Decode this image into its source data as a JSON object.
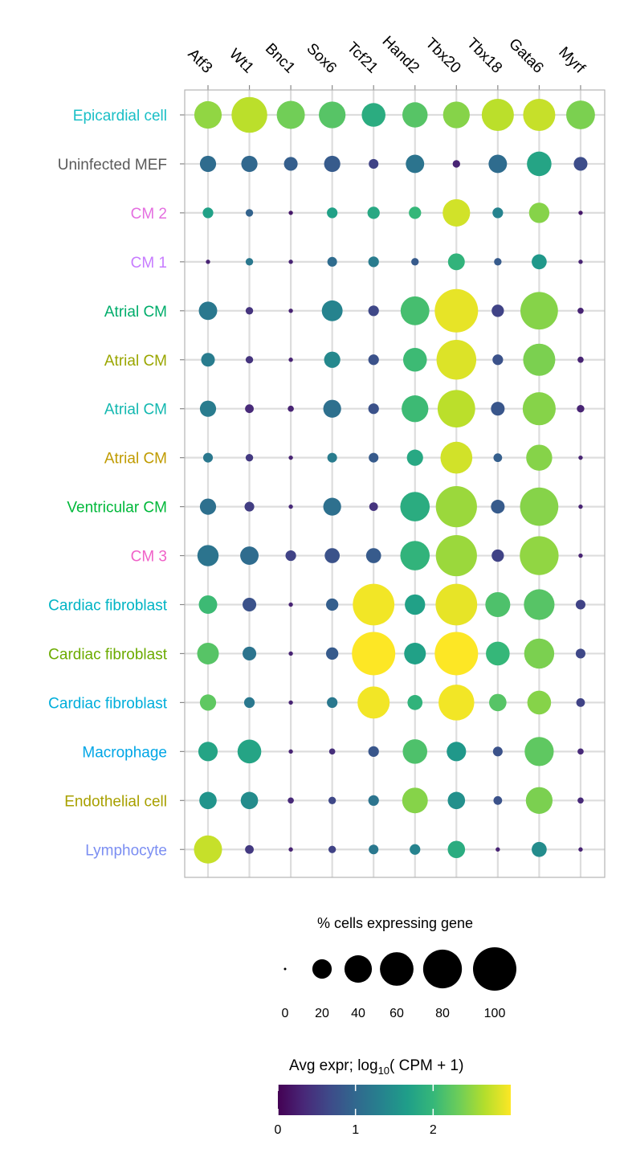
{
  "chart_data": {
    "type": "dotplot",
    "genes": [
      "Atf3",
      "Wt1",
      "Bnc1",
      "Sox6",
      "Tcf21",
      "Hand2",
      "Tbx20",
      "Tbx18",
      "Gata6",
      "Myrf"
    ],
    "cell_types": [
      {
        "name": "Epicardial cell",
        "color": "#1ABFC6"
      },
      {
        "name": "Uninfected MEF",
        "color": "#5A5A5A"
      },
      {
        "name": "CM 2",
        "color": "#E46FE0"
      },
      {
        "name": "CM 1",
        "color": "#C77CFF"
      },
      {
        "name": "Atrial CM",
        "color": "#00AD6B"
      },
      {
        "name": "Atrial CM",
        "color": "#9AA600"
      },
      {
        "name": "Atrial CM",
        "color": "#13B8B0"
      },
      {
        "name": "Atrial CM",
        "color": "#C09B00"
      },
      {
        "name": "Ventricular CM",
        "color": "#00B83A"
      },
      {
        "name": "CM 3",
        "color": "#F062C8"
      },
      {
        "name": "Cardiac fibroblast",
        "color": "#00B4C4"
      },
      {
        "name": "Cardiac fibroblast",
        "color": "#6CAB00"
      },
      {
        "name": "Cardiac fibroblast",
        "color": "#00AEDB"
      },
      {
        "name": "Macrophage",
        "color": "#00A6E6"
      },
      {
        "name": "Endothelial cell",
        "color": "#A8A000"
      },
      {
        "name": "Lymphocyte",
        "color": "#7B8EF2"
      }
    ],
    "pct_expressing": [
      [
        40,
        68,
        42,
        38,
        30,
        34,
        38,
        55,
        55,
        44
      ],
      [
        14,
        14,
        10,
        14,
        5,
        18,
        3,
        18,
        32,
        10
      ],
      [
        6,
        3,
        1,
        6,
        8,
        8,
        40,
        6,
        22,
        1
      ],
      [
        1,
        3,
        1,
        5,
        6,
        3,
        15,
        3,
        12,
        1
      ],
      [
        18,
        3,
        1,
        23,
        6,
        44,
        100,
        8,
        75,
        2
      ],
      [
        10,
        3,
        1,
        14,
        6,
        30,
        84,
        6,
        55,
        2
      ],
      [
        14,
        4,
        2,
        17,
        6,
        38,
        75,
        10,
        58,
        3
      ],
      [
        5,
        3,
        1,
        5,
        5,
        14,
        54,
        4,
        36,
        1
      ],
      [
        14,
        5,
        1,
        17,
        4,
        46,
        90,
        10,
        78,
        1
      ],
      [
        24,
        18,
        6,
        12,
        12,
        46,
        90,
        8,
        80,
        1
      ],
      [
        18,
        10,
        1,
        8,
        92,
        22,
        92,
        33,
        50,
        5
      ],
      [
        25,
        10,
        1,
        8,
        100,
        25,
        100,
        30,
        48,
        5
      ],
      [
        14,
        6,
        1,
        6,
        55,
        12,
        68,
        16,
        30,
        4
      ],
      [
        20,
        30,
        1,
        2,
        6,
        32,
        20,
        5,
        45,
        2
      ],
      [
        16,
        16,
        2,
        3,
        6,
        35,
        16,
        4,
        38,
        2
      ],
      [
        42,
        4,
        1,
        3,
        5,
        6,
        16,
        1,
        12,
        1
      ]
    ],
    "avg_expr": [
      [
        2.5,
        2.7,
        2.35,
        2.2,
        1.85,
        2.2,
        2.45,
        2.7,
        2.75,
        2.4
      ],
      [
        1.05,
        1.0,
        0.9,
        0.85,
        0.6,
        1.15,
        0.3,
        1.05,
        1.75,
        0.7
      ],
      [
        1.7,
        0.95,
        0.2,
        1.7,
        1.8,
        2.0,
        2.8,
        1.35,
        2.45,
        0.2
      ],
      [
        0.3,
        1.2,
        0.3,
        1.05,
        1.25,
        0.85,
        1.95,
        0.85,
        1.6,
        0.3
      ],
      [
        1.2,
        0.45,
        0.3,
        1.35,
        0.65,
        2.1,
        2.9,
        0.6,
        2.45,
        0.3
      ],
      [
        1.25,
        0.45,
        0.3,
        1.4,
        0.75,
        2.05,
        2.85,
        0.75,
        2.4,
        0.3
      ],
      [
        1.25,
        0.35,
        0.3,
        1.1,
        0.75,
        2.05,
        2.7,
        0.8,
        2.45,
        0.3
      ],
      [
        1.2,
        0.5,
        0.3,
        1.25,
        0.85,
        1.8,
        2.8,
        0.9,
        2.45,
        0.3
      ],
      [
        1.1,
        0.55,
        0.35,
        1.1,
        0.45,
        1.85,
        2.55,
        0.85,
        2.45,
        0.3
      ],
      [
        1.15,
        1.05,
        0.6,
        0.75,
        0.85,
        1.95,
        2.55,
        0.6,
        2.5,
        0.3
      ],
      [
        2.05,
        0.75,
        0.3,
        0.9,
        2.95,
        1.7,
        2.9,
        2.15,
        2.2,
        0.6
      ],
      [
        2.2,
        1.15,
        0.3,
        0.85,
        3.0,
        1.7,
        3.0,
        2.0,
        2.4,
        0.65
      ],
      [
        2.25,
        1.2,
        0.3,
        1.2,
        2.95,
        1.95,
        2.95,
        2.2,
        2.45,
        0.6
      ],
      [
        1.75,
        1.75,
        0.3,
        0.4,
        0.8,
        2.15,
        1.6,
        0.75,
        2.25,
        0.35
      ],
      [
        1.55,
        1.45,
        0.35,
        0.65,
        1.15,
        2.45,
        1.5,
        0.75,
        2.4,
        0.35
      ],
      [
        2.75,
        0.5,
        0.3,
        0.6,
        1.2,
        1.35,
        1.85,
        0.3,
        1.45,
        0.3
      ]
    ],
    "size_legend": {
      "title": "% cells expressing gene",
      "breaks": [
        0,
        20,
        40,
        60,
        80,
        100
      ],
      "labels": [
        "0",
        "20",
        "40",
        "60",
        "80",
        "100"
      ]
    },
    "color_legend": {
      "title_prefix": "Avg expr; log",
      "title_sub": "10",
      "title_suffix": "( CPM + 1)",
      "ticks": [
        0,
        1,
        2
      ],
      "labels": [
        "0",
        "1",
        "2"
      ],
      "range": [
        0,
        3
      ],
      "palette": [
        "#440154",
        "#482878",
        "#3E4A89",
        "#31688E",
        "#26828E",
        "#1F9E89",
        "#35B779",
        "#6DCD59",
        "#B4DE2C",
        "#FDE725"
      ]
    }
  }
}
